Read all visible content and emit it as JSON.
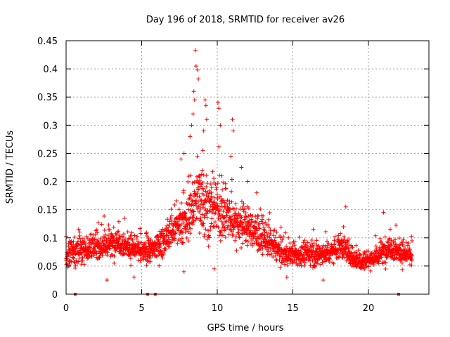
{
  "chart_data": {
    "type": "scatter",
    "title": "Day 196 of 2018, SRMTID for receiver av26",
    "xlabel": "GPS time / hours",
    "ylabel": "SRMTID / TECUs",
    "xlim": [
      0,
      24
    ],
    "ylim": [
      0,
      0.45
    ],
    "x_ticks": [
      0,
      5,
      10,
      15,
      20
    ],
    "x_tick_labels": [
      "0",
      "5",
      "10",
      "15",
      "20"
    ],
    "y_ticks": [
      0,
      0.05,
      0.1,
      0.15,
      0.2,
      0.25,
      0.3,
      0.35,
      0.4,
      0.45
    ],
    "y_tick_labels": [
      "0",
      "0.05",
      "0.1",
      "0.15",
      "0.2",
      "0.25",
      "0.3",
      "0.35",
      "0.4",
      "0.45"
    ],
    "grid": true,
    "marker": "plus",
    "color": "#ff0000",
    "envelope": {
      "x": [
        0,
        0.5,
        1,
        1.5,
        2,
        2.5,
        3,
        3.5,
        4,
        4.5,
        5,
        5.5,
        6,
        6.5,
        7,
        7.5,
        8,
        8.5,
        9,
        9.5,
        10,
        10.5,
        11,
        11.5,
        12,
        12.5,
        13,
        13.5,
        14,
        14.5,
        15,
        15.5,
        16,
        16.5,
        17,
        17.5,
        18,
        18.5,
        19,
        19.5,
        20,
        20.5,
        21,
        21.5,
        22,
        22.5,
        23
      ],
      "y": [
        0.065,
        0.075,
        0.08,
        0.08,
        0.085,
        0.085,
        0.09,
        0.095,
        0.085,
        0.08,
        0.075,
        0.075,
        0.085,
        0.095,
        0.11,
        0.12,
        0.13,
        0.165,
        0.175,
        0.145,
        0.15,
        0.14,
        0.13,
        0.125,
        0.12,
        0.11,
        0.1,
        0.09,
        0.08,
        0.07,
        0.07,
        0.068,
        0.072,
        0.07,
        0.072,
        0.075,
        0.085,
        0.08,
        0.065,
        0.06,
        0.062,
        0.065,
        0.075,
        0.085,
        0.075,
        0.07,
        0.065
      ],
      "spread": [
        0.025,
        0.028,
        0.028,
        0.028,
        0.028,
        0.03,
        0.032,
        0.032,
        0.03,
        0.028,
        0.025,
        0.025,
        0.03,
        0.035,
        0.04,
        0.045,
        0.05,
        0.075,
        0.085,
        0.06,
        0.06,
        0.055,
        0.05,
        0.045,
        0.045,
        0.042,
        0.038,
        0.035,
        0.03,
        0.025,
        0.025,
        0.025,
        0.025,
        0.025,
        0.025,
        0.025,
        0.03,
        0.03,
        0.025,
        0.022,
        0.022,
        0.022,
        0.028,
        0.03,
        0.028,
        0.025,
        0.022
      ]
    },
    "points_sample": [
      {
        "x": 8.55,
        "y": 0.433
      },
      {
        "x": 8.6,
        "y": 0.405
      },
      {
        "x": 8.7,
        "y": 0.398
      },
      {
        "x": 8.75,
        "y": 0.382
      },
      {
        "x": 8.45,
        "y": 0.36
      },
      {
        "x": 8.5,
        "y": 0.345
      },
      {
        "x": 9.2,
        "y": 0.345
      },
      {
        "x": 9.25,
        "y": 0.335
      },
      {
        "x": 9.3,
        "y": 0.31
      },
      {
        "x": 9.1,
        "y": 0.29
      },
      {
        "x": 8.4,
        "y": 0.32
      },
      {
        "x": 8.3,
        "y": 0.3
      },
      {
        "x": 10.05,
        "y": 0.34
      },
      {
        "x": 10.1,
        "y": 0.33
      },
      {
        "x": 10.2,
        "y": 0.3
      },
      {
        "x": 10.1,
        "y": 0.262
      },
      {
        "x": 11.0,
        "y": 0.31
      },
      {
        "x": 11.05,
        "y": 0.29
      },
      {
        "x": 9.05,
        "y": 0.255
      },
      {
        "x": 9.0,
        "y": 0.22
      },
      {
        "x": 8.2,
        "y": 0.28
      },
      {
        "x": 7.8,
        "y": 0.25
      },
      {
        "x": 7.6,
        "y": 0.24
      },
      {
        "x": 11.6,
        "y": 0.225
      },
      {
        "x": 12.0,
        "y": 0.2
      },
      {
        "x": 12.6,
        "y": 0.18
      },
      {
        "x": 10.9,
        "y": 0.245
      },
      {
        "x": 10.3,
        "y": 0.21
      },
      {
        "x": 2.7,
        "y": 0.025
      },
      {
        "x": 4.5,
        "y": 0.03
      },
      {
        "x": 7.8,
        "y": 0.04
      },
      {
        "x": 9.8,
        "y": 0.045
      },
      {
        "x": 14.6,
        "y": 0.03
      },
      {
        "x": 17.0,
        "y": 0.025
      },
      {
        "x": 18.5,
        "y": 0.155
      },
      {
        "x": 21.0,
        "y": 0.145
      }
    ],
    "zero_markers_x": [
      0.6,
      5.4,
      5.9,
      22.0
    ]
  }
}
